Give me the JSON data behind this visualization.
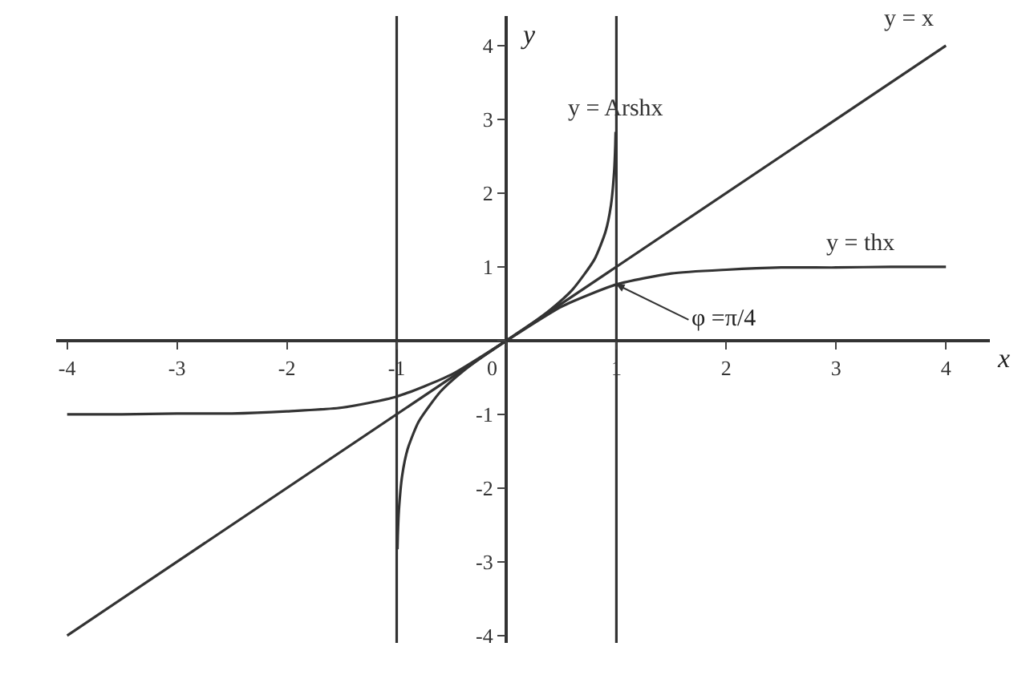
{
  "chart_data": {
    "type": "line",
    "xlabel": "x",
    "ylabel": "y",
    "series": [
      {
        "name": "y = x",
        "color": "#333333",
        "x": [
          -4,
          4
        ],
        "values": [
          -4,
          4
        ]
      },
      {
        "name": "y = thx",
        "color": "#333333",
        "x": [
          -4,
          -3.5,
          -3,
          -2.5,
          -2,
          -1.5,
          -1,
          -0.5,
          0,
          0.5,
          1,
          1.5,
          2,
          2.5,
          3,
          3.5,
          4
        ],
        "values": [
          -1.0,
          -1.0,
          -0.99,
          -0.99,
          -0.96,
          -0.91,
          -0.76,
          -0.46,
          0,
          0.46,
          0.76,
          0.91,
          0.96,
          0.99,
          0.99,
          1.0,
          1.0
        ]
      },
      {
        "name": "y = Arshx",
        "color": "#333333",
        "x": [
          -0.993,
          -0.99,
          -0.98,
          -0.95,
          -0.9,
          -0.8,
          -0.6,
          -0.4,
          -0.2,
          0,
          0.2,
          0.4,
          0.6,
          0.8,
          0.9,
          0.95,
          0.98,
          0.99,
          0.993
        ],
        "values": [
          -2.83,
          -2.65,
          -2.3,
          -1.83,
          -1.47,
          -1.1,
          -0.69,
          -0.42,
          -0.2,
          0,
          0.2,
          0.42,
          0.69,
          1.1,
          1.47,
          1.83,
          2.3,
          2.65,
          2.83
        ]
      }
    ],
    "ref_lines": [
      {
        "axis": "x",
        "value": -1,
        "color": "#333333"
      },
      {
        "axis": "x",
        "value": 1,
        "color": "#333333"
      }
    ],
    "annotations": [
      {
        "text": "φ =π/4",
        "x": 1,
        "y": 0.76
      }
    ],
    "xlim": [
      -4.1,
      4.4
    ],
    "ylim": [
      -4.1,
      4.4
    ],
    "xticks": [
      -4,
      -3,
      -2,
      -1,
      0,
      1,
      2,
      3,
      4
    ],
    "yticks": [
      -4,
      -3,
      -2,
      -1,
      {
        "value": 0,
        "label": null
      },
      1,
      2,
      3,
      4
    ],
    "legend": false,
    "marker": "none",
    "line_style": "solid"
  }
}
